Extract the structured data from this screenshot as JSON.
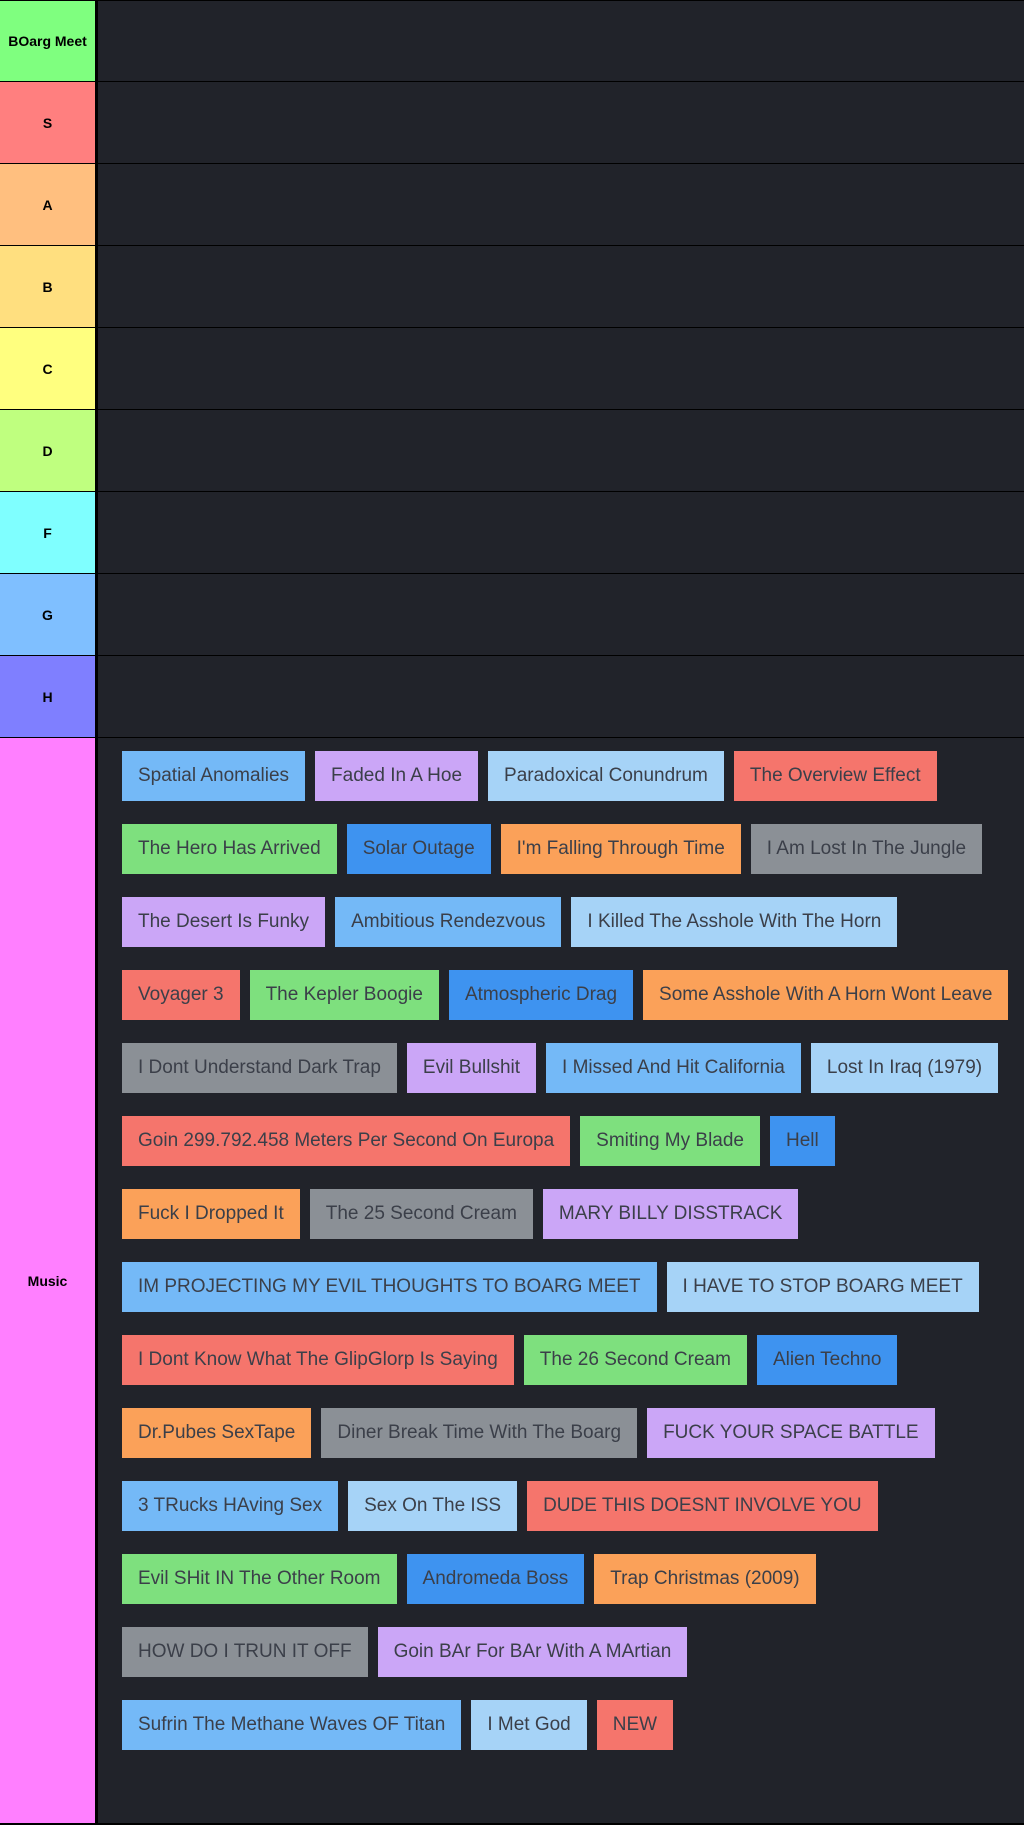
{
  "tiers": [
    {
      "label": "BOarg Meet",
      "color": "#7fff7f"
    },
    {
      "label": "S",
      "color": "#ff7f7f"
    },
    {
      "label": "A",
      "color": "#ffbf7f"
    },
    {
      "label": "B",
      "color": "#ffdf7f"
    },
    {
      "label": "C",
      "color": "#ffff7f"
    },
    {
      "label": "D",
      "color": "#bfff7f"
    },
    {
      "label": "F",
      "color": "#7fffff"
    },
    {
      "label": "G",
      "color": "#7fbfff"
    },
    {
      "label": "H",
      "color": "#7f7fff"
    }
  ],
  "music": {
    "label": "Music",
    "color": "#ff7fff",
    "items": [
      {
        "text": "Spatial Anomalies",
        "color": "#74b9f7"
      },
      {
        "text": "Faded In A Hoe",
        "color": "#cba6f7"
      },
      {
        "text": "Paradoxical Conundrum",
        "color": "#a6d3f7"
      },
      {
        "text": "The Overview Effect",
        "color": "#f5756c"
      },
      {
        "text": "The Hero Has Arrived",
        "color": "#7ee07e"
      },
      {
        "text": "Solar Outage",
        "color": "#3e93f0"
      },
      {
        "text": "I'm Falling Through Time",
        "color": "#fba159"
      },
      {
        "text": "I Am Lost In The Jungle",
        "color": "#8b9096"
      },
      {
        "text": "The Desert Is Funky",
        "color": "#cba6f7"
      },
      {
        "text": "Ambitious Rendezvous",
        "color": "#74b9f7"
      },
      {
        "text": "I Killed The Asshole With The Horn",
        "color": "#a6d3f7"
      },
      {
        "text": "Voyager 3",
        "color": "#f5756c"
      },
      {
        "text": "The Kepler Boogie",
        "color": "#7ee07e"
      },
      {
        "text": "Atmospheric Drag",
        "color": "#3e93f0"
      },
      {
        "text": "Some Asshole With A Horn Wont Leave",
        "color": "#fba159"
      },
      {
        "text": "I Dont Understand Dark Trap",
        "color": "#8b9096"
      },
      {
        "text": "Evil Bullshit",
        "color": "#cba6f7"
      },
      {
        "text": "I Missed And Hit California",
        "color": "#74b9f7"
      },
      {
        "text": "Lost In Iraq (1979)",
        "color": "#a6d3f7"
      },
      {
        "text": "Goin 299.792.458 Meters Per Second On Europa",
        "color": "#f5756c"
      },
      {
        "text": "Smiting My Blade",
        "color": "#7ee07e"
      },
      {
        "text": "Hell",
        "color": "#3e93f0"
      },
      {
        "text": "Fuck I Dropped It",
        "color": "#fba159"
      },
      {
        "text": "The 25 Second Cream",
        "color": "#8b9096"
      },
      {
        "text": "MARY BILLY DISSTRACK",
        "color": "#cba6f7"
      },
      {
        "text": "IM PROJECTING MY EVIL THOUGHTS TO BOARG MEET",
        "color": "#74b9f7"
      },
      {
        "text": "I HAVE TO STOP BOARG MEET",
        "color": "#a6d3f7"
      },
      {
        "text": "I Dont Know What The GlipGlorp Is Saying",
        "color": "#f5756c"
      },
      {
        "text": "The 26 Second Cream",
        "color": "#7ee07e"
      },
      {
        "text": "Alien Techno",
        "color": "#3e93f0"
      },
      {
        "text": "Dr.Pubes SexTape",
        "color": "#fba159"
      },
      {
        "text": "Diner Break Time With The Boarg",
        "color": "#8b9096"
      },
      {
        "text": "FUCK YOUR SPACE BATTLE",
        "color": "#cba6f7"
      },
      {
        "text": "3 TRucks HAving Sex",
        "color": "#74b9f7"
      },
      {
        "text": "Sex On The ISS",
        "color": "#a6d3f7"
      },
      {
        "text": "DUDE THIS DOESNT INVOLVE YOU",
        "color": "#f5756c"
      },
      {
        "text": "Evil SHit IN The Other Room",
        "color": "#7ee07e"
      },
      {
        "text": "Andromeda Boss",
        "color": "#3e93f0"
      },
      {
        "text": "Trap Christmas (2009)",
        "color": "#fba159"
      },
      {
        "text": "HOW DO I TRUN IT OFF",
        "color": "#8b9096"
      },
      {
        "text": "Goin BAr For BAr With A MArtian",
        "color": "#cba6f7"
      },
      {
        "text": "Sufrin The Methane Waves OF Titan",
        "color": "#74b9f7"
      },
      {
        "text": "I Met God",
        "color": "#a6d3f7"
      },
      {
        "text": "NEW",
        "color": "#f5756c"
      }
    ]
  },
  "content_bg": "#21232a"
}
